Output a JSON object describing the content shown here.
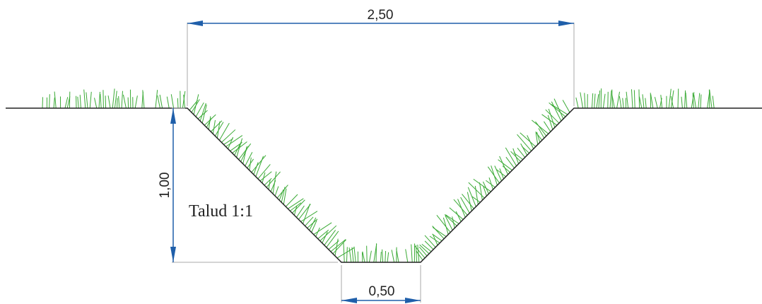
{
  "dimensions": {
    "top_width": "2,50",
    "depth": "1,00",
    "bottom_width": "0,50"
  },
  "slope_label": "Talud 1:1"
}
